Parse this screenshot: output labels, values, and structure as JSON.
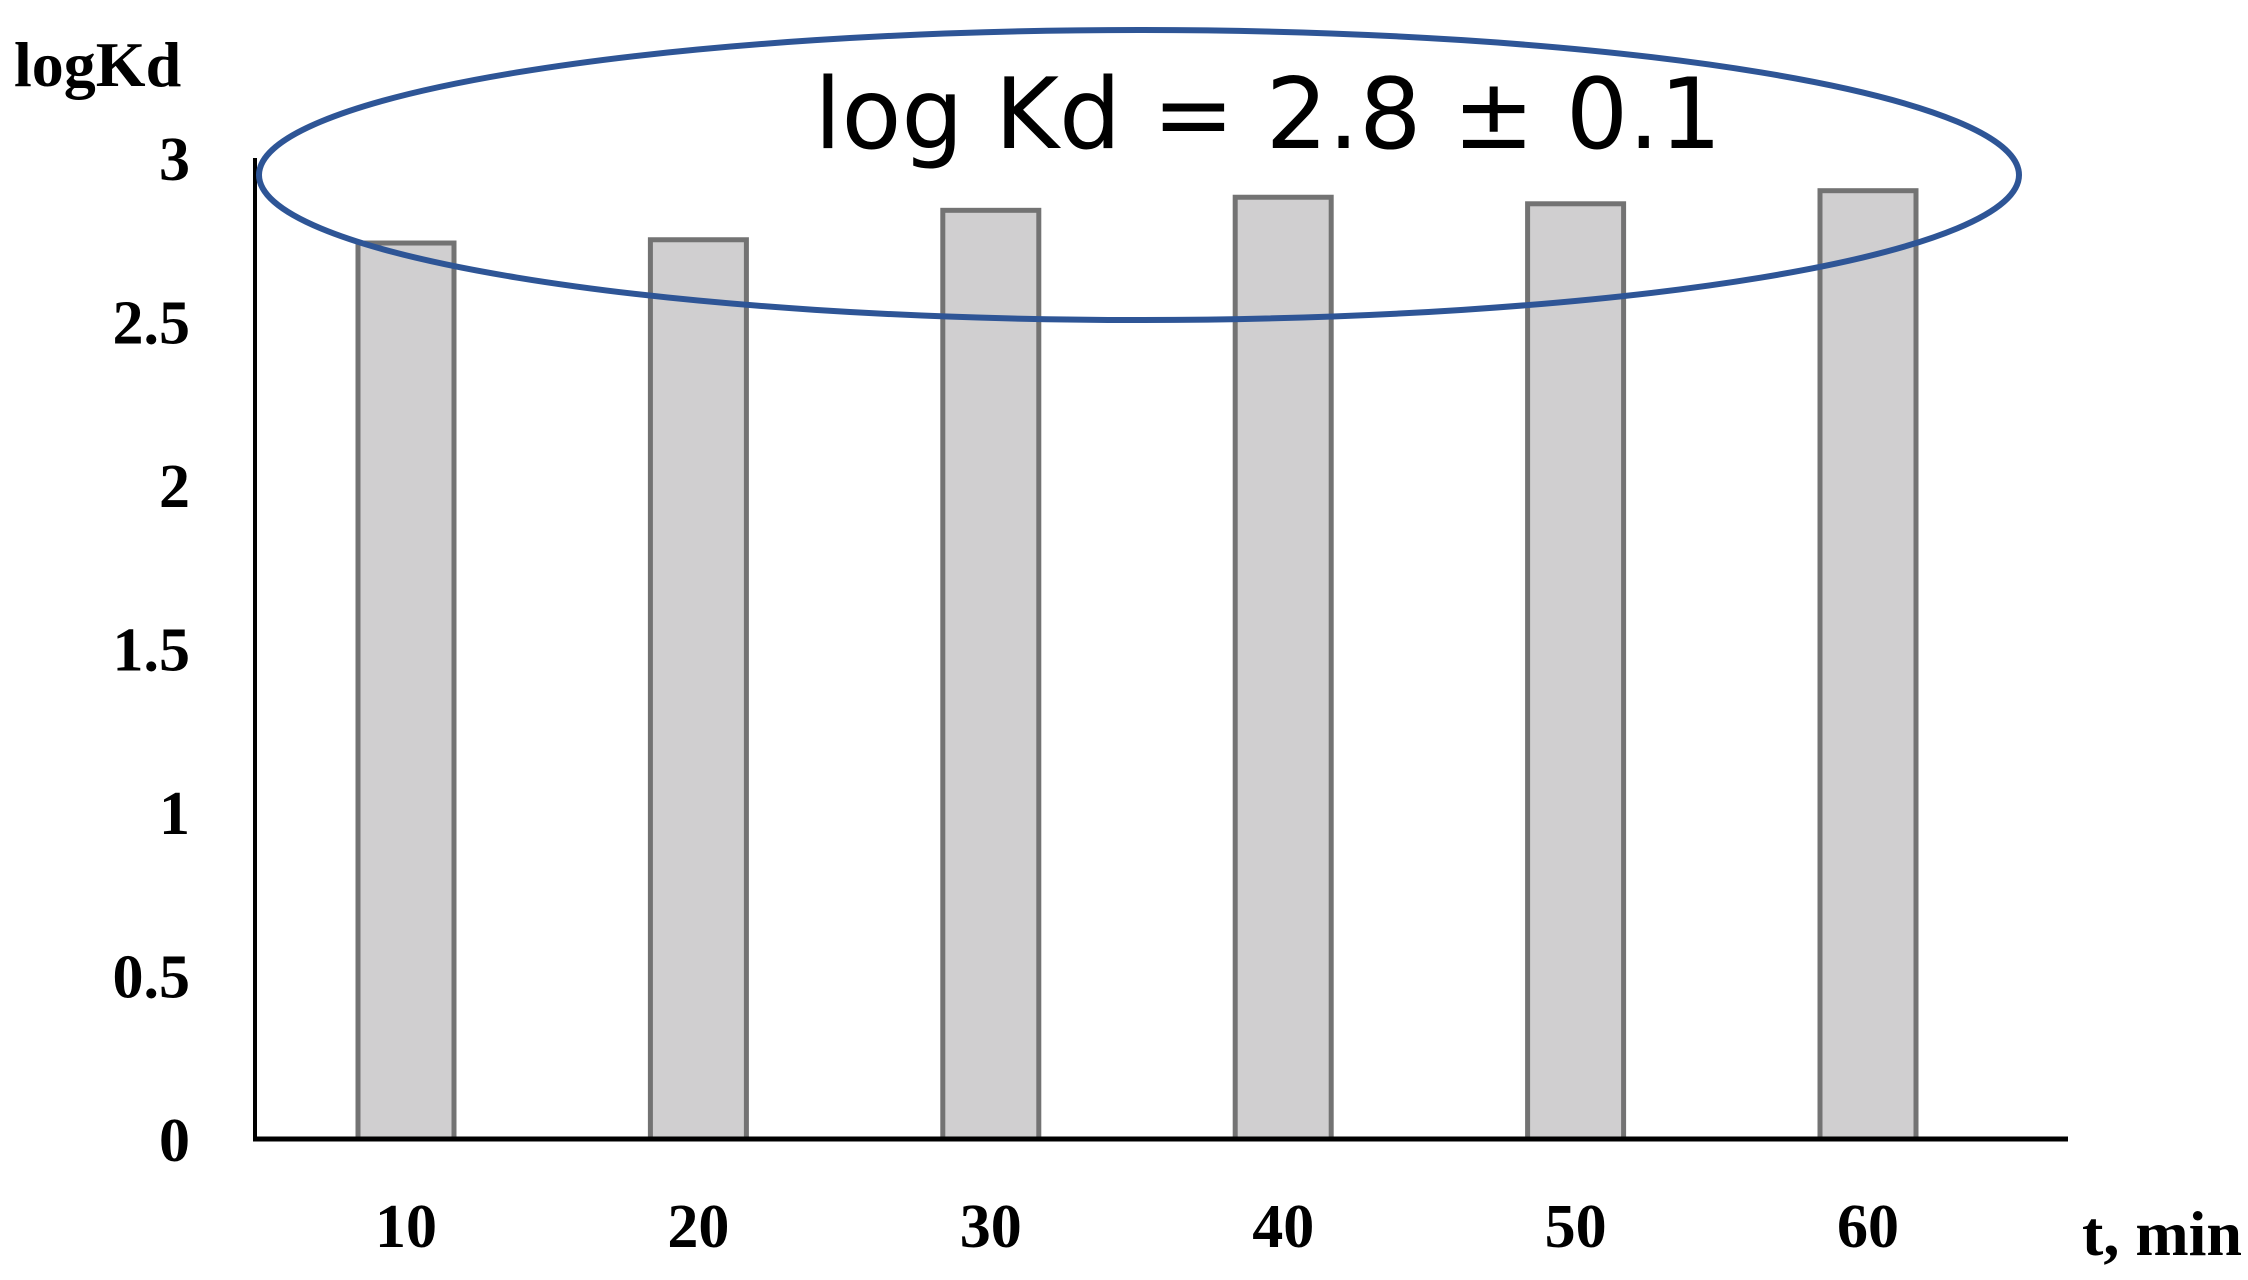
{
  "chart_data": {
    "type": "bar",
    "categories": [
      "10",
      "20",
      "30",
      "40",
      "50",
      "60"
    ],
    "values": [
      2.74,
      2.75,
      2.84,
      2.88,
      2.86,
      2.9
    ],
    "title": "",
    "xlabel": "t, min",
    "ylabel": "logKd",
    "ylim": [
      0,
      3
    ],
    "yticks": [
      "0",
      "0.5",
      "1",
      "1.5",
      "2",
      "2.5",
      "3"
    ],
    "grid": false,
    "annotation": {
      "text": "log Kd = 2.8 ± 0.1",
      "shape": "ellipse",
      "color": "#2e5596"
    },
    "colors": {
      "bar_fill": "#d0cfd0",
      "bar_stroke": "#737373",
      "axis": "#000000"
    }
  }
}
